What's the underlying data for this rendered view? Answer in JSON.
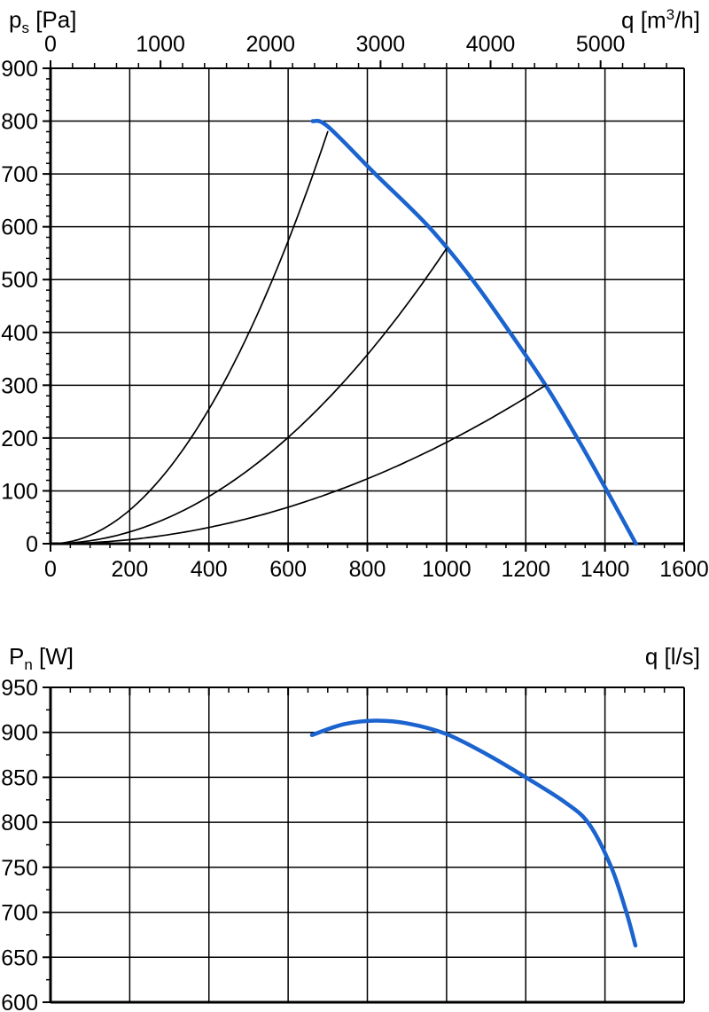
{
  "page": {
    "background": "#ffffff"
  },
  "colors": {
    "curve_blue": "#1b63ce",
    "grid_black": "#000000"
  },
  "labels": {
    "chart1_y_title": {
      "main": "p",
      "sub": "s",
      "unit": " [Pa]"
    },
    "chart1_x_top_title": {
      "main": "q [m",
      "sup": "3",
      "unit": "/h]"
    },
    "chart2_y_title": {
      "main": "P",
      "sub": "n",
      "unit": " [W]"
    },
    "chart2_x_title": {
      "main": "q [l/s]",
      "sub": "",
      "unit": ""
    }
  },
  "chart_data": [
    {
      "type": "line",
      "y_axis": {
        "label": "p_s [Pa]",
        "min": 0,
        "max": 900,
        "major_tick": 100,
        "minor_tick": 20,
        "tick_labels": [
          "900",
          "800",
          "700",
          "600",
          "500",
          "400",
          "300",
          "200",
          "100",
          "0"
        ]
      },
      "x_axis_bottom": {
        "label": "q [l/s]",
        "min": 0,
        "max": 1600,
        "major_tick": 200,
        "minor_tick": 50,
        "tick_labels": [
          "0",
          "200",
          "400",
          "600",
          "800",
          "1000",
          "1200",
          "1400",
          "1600"
        ]
      },
      "x_axis_top": {
        "label": "q [m³/h]",
        "min": 0,
        "max": 5760,
        "major_tick": 1000,
        "minor_tick": 200,
        "tick_labels": [
          "0",
          "1000",
          "2000",
          "3000",
          "4000",
          "5000"
        ]
      },
      "grid": {
        "x_step_ls": 200,
        "y_step_pa": 100,
        "grid_on": true,
        "legend": "none"
      },
      "series": [
        {
          "name": "fan-pressure-curve",
          "color_key": "curve_blue",
          "stroke_width": 4.5,
          "points": [
            [
              662,
              800
            ],
            [
              700,
              790
            ],
            [
              820,
              700
            ],
            [
              955,
              600
            ],
            [
              1065,
              500
            ],
            [
              1160,
              400
            ],
            [
              1250,
              300
            ],
            [
              1330,
              200
            ],
            [
              1405,
              100
            ],
            [
              1478,
              0
            ]
          ]
        },
        {
          "name": "system-curve-1",
          "color": "#000000",
          "stroke_width": 1.7,
          "parabola": {
            "q_end": 700,
            "p_end": 780
          }
        },
        {
          "name": "system-curve-2",
          "color": "#000000",
          "stroke_width": 1.7,
          "parabola": {
            "q_end": 1000,
            "p_end": 559
          }
        },
        {
          "name": "system-curve-3",
          "color": "#000000",
          "stroke_width": 1.7,
          "parabola": {
            "q_end": 1250,
            "p_end": 300
          }
        }
      ]
    },
    {
      "type": "line",
      "y_axis": {
        "label": "P_n [W]",
        "min": 600,
        "max": 950,
        "major_tick": 50,
        "minor_tick": 25,
        "tick_labels": [
          "950",
          "900",
          "850",
          "800",
          "750",
          "700",
          "650",
          "600"
        ]
      },
      "x_axis_top": {
        "label": "q [l/s]",
        "min": 0,
        "max": 1600,
        "major_tick": 200,
        "minor_tick": 50,
        "tick_labels": []
      },
      "grid": {
        "x_step_ls": 200,
        "y_step_w": 50,
        "grid_on": true,
        "legend": "none"
      },
      "series": [
        {
          "name": "power-curve",
          "color_key": "curve_blue",
          "stroke_width": 4.5,
          "points": [
            [
              660,
              897
            ],
            [
              740,
              909
            ],
            [
              820,
              913
            ],
            [
              900,
              910
            ],
            [
              1000,
              898
            ],
            [
              1100,
              876
            ],
            [
              1200,
              850
            ],
            [
              1300,
              822
            ],
            [
              1360,
              798
            ],
            [
              1416,
              750
            ],
            [
              1454,
              700
            ],
            [
              1477,
              663
            ]
          ]
        }
      ]
    }
  ]
}
